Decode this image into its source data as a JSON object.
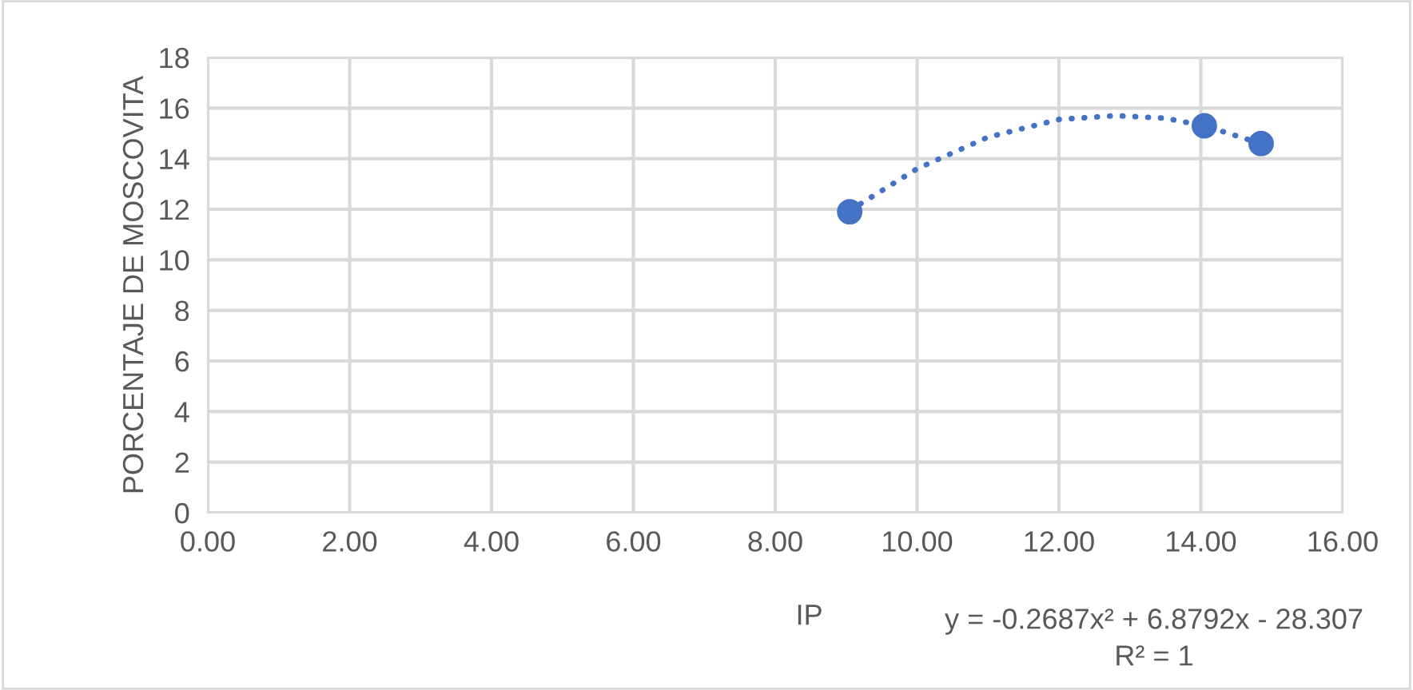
{
  "chart_data": {
    "type": "scatter",
    "xlabel": "IP",
    "ylabel": "PORCENTAJE DE MOSCOVITA",
    "xlim": [
      0,
      16
    ],
    "ylim": [
      0,
      18
    ],
    "xticks": [
      {
        "value": 0,
        "label": "0.00"
      },
      {
        "value": 2,
        "label": "2.00"
      },
      {
        "value": 4,
        "label": "4.00"
      },
      {
        "value": 6,
        "label": "6.00"
      },
      {
        "value": 8,
        "label": "8.00"
      },
      {
        "value": 10,
        "label": "10.00"
      },
      {
        "value": 12,
        "label": "12.00"
      },
      {
        "value": 14,
        "label": "14.00"
      },
      {
        "value": 16,
        "label": "16.00"
      }
    ],
    "yticks": [
      0,
      2,
      4,
      6,
      8,
      10,
      12,
      14,
      16,
      18
    ],
    "grid": true,
    "legend": false,
    "series": [
      {
        "color": "#4472c4",
        "marker": "circle",
        "x": [
          9.05,
          14.05,
          14.85
        ],
        "values": [
          11.9,
          15.3,
          14.6
        ]
      },
      {
        "type": "line",
        "color": "#4472c4",
        "line_style": "dotted",
        "marker": "none",
        "x": [
          9.05,
          10,
          11,
          12,
          12.8,
          13.5,
          14.05,
          14.85
        ],
        "values": [
          11.95,
          13.6,
          14.85,
          15.55,
          15.7,
          15.6,
          15.3,
          14.6
        ]
      }
    ],
    "annotations": [
      "y = -0.2687x² + 6.8792x - 28.307",
      "R² = 1"
    ]
  }
}
